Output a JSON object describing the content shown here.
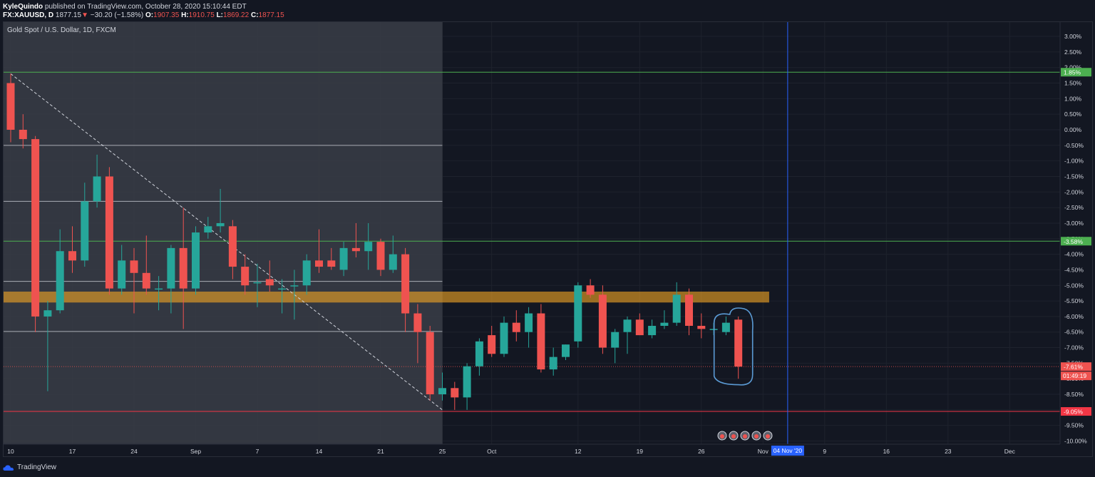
{
  "header": {
    "author": "KyleQuindo",
    "published_text": "published on TradingView.com, October 28, 2020 15:10:44 EDT",
    "symbol": "FX:XAUUSD, D",
    "last_price": "1877.15",
    "change_arrow": "▼",
    "change": "−30.20 (−1.58%)",
    "o_label": "O:",
    "o_value": "1907.35",
    "h_label": "H:",
    "h_value": "1910.75",
    "l_label": "L:",
    "l_value": "1869.22",
    "c_label": "C:",
    "c_value": "1877.15"
  },
  "instrument_title": "Gold Spot / U.S. Dollar, 1D, FXCM",
  "branding": "TradingView",
  "colors": {
    "background": "#131722",
    "up": "#26a69a",
    "down": "#ef5350",
    "green_line": "#4caf50",
    "red_line": "#f23645",
    "zone": "#f5a623",
    "vline": "#2962ff",
    "highlight_ellipse": "#5b9bd5"
  },
  "chart_data": {
    "type": "candlestick",
    "y_axis": {
      "unit": "%",
      "range": [
        -10.0,
        3.0
      ],
      "ticks": [
        "3.00%",
        "2.50%",
        "2.00%",
        "1.50%",
        "1.00%",
        "0.50%",
        "0.00%",
        "-0.50%",
        "-1.00%",
        "-1.50%",
        "-2.00%",
        "-2.50%",
        "-3.00%",
        "-3.50%",
        "-4.00%",
        "-4.50%",
        "-5.00%",
        "-5.50%",
        "-6.00%",
        "-6.50%",
        "-7.00%",
        "-7.50%",
        "-8.00%",
        "-8.50%",
        "-9.00%",
        "-9.50%",
        "-10.00%"
      ],
      "tick_values": [
        3.0,
        2.5,
        2.0,
        1.5,
        1.0,
        0.5,
        0.0,
        -0.5,
        -1.0,
        -1.5,
        -2.0,
        -2.5,
        -3.0,
        -3.5,
        -4.0,
        -4.5,
        -5.0,
        -5.5,
        -6.0,
        -6.5,
        -7.0,
        -7.5,
        -8.0,
        -8.5,
        -9.0,
        -9.5,
        -10.0
      ]
    },
    "x_axis": {
      "range": [
        0,
        86
      ],
      "ticks": [
        {
          "label": "10",
          "x": 0
        },
        {
          "label": "17",
          "x": 5
        },
        {
          "label": "24",
          "x": 10
        },
        {
          "label": "Sep",
          "x": 15
        },
        {
          "label": "7",
          "x": 20
        },
        {
          "label": "14",
          "x": 25
        },
        {
          "label": "21",
          "x": 30
        },
        {
          "label": "25",
          "x": 35
        },
        {
          "label": "Oct",
          "x": 39
        },
        {
          "label": "12",
          "x": 46
        },
        {
          "label": "19",
          "x": 51
        },
        {
          "label": "26",
          "x": 56
        },
        {
          "label": "Nov",
          "x": 61
        },
        {
          "label": "9",
          "x": 66
        },
        {
          "label": "16",
          "x": 71
        },
        {
          "label": "23",
          "x": 76
        },
        {
          "label": "Dec",
          "x": 81
        }
      ],
      "current_date_label": "04 Nov '20",
      "current_date_x": 63
    },
    "candles": [
      {
        "x": 0,
        "o": 1.5,
        "h": 1.8,
        "l": -0.4,
        "c": 0.0
      },
      {
        "x": 1,
        "o": 0.0,
        "h": 0.5,
        "l": -0.6,
        "c": -0.3
      },
      {
        "x": 2,
        "o": -0.3,
        "h": -0.2,
        "l": -6.5,
        "c": -6.0
      },
      {
        "x": 3,
        "o": -6.0,
        "h": -5.5,
        "l": -8.4,
        "c": -5.8
      },
      {
        "x": 4,
        "o": -5.8,
        "h": -3.2,
        "l": -5.9,
        "c": -3.9
      },
      {
        "x": 5,
        "o": -3.9,
        "h": -3.1,
        "l": -4.6,
        "c": -4.2
      },
      {
        "x": 6,
        "o": -4.2,
        "h": -1.7,
        "l": -4.4,
        "c": -2.3
      },
      {
        "x": 7,
        "o": -2.3,
        "h": -0.8,
        "l": -2.5,
        "c": -1.5
      },
      {
        "x": 8,
        "o": -1.5,
        "h": -1.2,
        "l": -5.3,
        "c": -5.1
      },
      {
        "x": 9,
        "o": -5.1,
        "h": -3.7,
        "l": -5.3,
        "c": -4.2
      },
      {
        "x": 10,
        "o": -4.2,
        "h": -3.8,
        "l": -5.9,
        "c": -4.6
      },
      {
        "x": 11,
        "o": -4.6,
        "h": -3.4,
        "l": -5.3,
        "c": -5.1
      },
      {
        "x": 12,
        "o": -5.1,
        "h": -4.7,
        "l": -5.8,
        "c": -5.1
      },
      {
        "x": 13,
        "o": -5.1,
        "h": -3.7,
        "l": -5.9,
        "c": -3.8
      },
      {
        "x": 14,
        "o": -3.8,
        "h": -2.5,
        "l": -6.4,
        "c": -5.1
      },
      {
        "x": 15,
        "o": -5.1,
        "h": -3.1,
        "l": -5.3,
        "c": -3.3
      },
      {
        "x": 16,
        "o": -3.3,
        "h": -2.8,
        "l": -3.5,
        "c": -3.1
      },
      {
        "x": 17,
        "o": -3.1,
        "h": -1.9,
        "l": -3.3,
        "c": -3.0
      },
      {
        "x": 18,
        "o": -3.1,
        "h": -2.9,
        "l": -4.8,
        "c": -4.4
      },
      {
        "x": 19,
        "o": -4.4,
        "h": -4.0,
        "l": -5.3,
        "c": -5.0
      },
      {
        "x": 20,
        "o": -4.9,
        "h": -4.3,
        "l": -5.7,
        "c": -4.9
      },
      {
        "x": 21,
        "o": -4.8,
        "h": -4.2,
        "l": -5.2,
        "c": -5.0
      },
      {
        "x": 22,
        "o": -5.1,
        "h": -4.8,
        "l": -5.9,
        "c": -5.1
      },
      {
        "x": 23,
        "o": -5.0,
        "h": -4.5,
        "l": -6.1,
        "c": -5.0
      },
      {
        "x": 24,
        "o": -5.0,
        "h": -4.0,
        "l": -5.3,
        "c": -4.2
      },
      {
        "x": 25,
        "o": -4.2,
        "h": -3.2,
        "l": -4.6,
        "c": -4.4
      },
      {
        "x": 26,
        "o": -4.2,
        "h": -3.8,
        "l": -4.5,
        "c": -4.4
      },
      {
        "x": 27,
        "o": -4.5,
        "h": -3.6,
        "l": -4.7,
        "c": -3.8
      },
      {
        "x": 28,
        "o": -3.8,
        "h": -3.0,
        "l": -4.1,
        "c": -3.9
      },
      {
        "x": 29,
        "o": -3.9,
        "h": -3.0,
        "l": -4.5,
        "c": -3.6
      },
      {
        "x": 30,
        "o": -3.6,
        "h": -3.5,
        "l": -4.7,
        "c": -4.5
      },
      {
        "x": 31,
        "o": -4.5,
        "h": -3.4,
        "l": -4.6,
        "c": -4.0
      },
      {
        "x": 32,
        "o": -4.0,
        "h": -3.8,
        "l": -6.5,
        "c": -5.9
      },
      {
        "x": 33,
        "o": -5.9,
        "h": -5.6,
        "l": -7.5,
        "c": -6.5
      },
      {
        "x": 34,
        "o": -6.5,
        "h": -6.3,
        "l": -8.7,
        "c": -8.5
      },
      {
        "x": 35,
        "o": -8.5,
        "h": -7.8,
        "l": -8.7,
        "c": -8.3
      },
      {
        "x": 36,
        "o": -8.3,
        "h": -8.1,
        "l": -9.0,
        "c": -8.6
      },
      {
        "x": 37,
        "o": -8.6,
        "h": -7.5,
        "l": -9.0,
        "c": -7.6
      },
      {
        "x": 38,
        "o": -7.6,
        "h": -6.7,
        "l": -7.9,
        "c": -6.8
      },
      {
        "x": 39,
        "o": -6.6,
        "h": -6.3,
        "l": -7.3,
        "c": -7.2
      },
      {
        "x": 40,
        "o": -7.2,
        "h": -6.0,
        "l": -7.3,
        "c": -6.2
      },
      {
        "x": 41,
        "o": -6.2,
        "h": -5.8,
        "l": -6.8,
        "c": -6.5
      },
      {
        "x": 42,
        "o": -6.5,
        "h": -5.7,
        "l": -7.0,
        "c": -5.9
      },
      {
        "x": 43,
        "o": -5.9,
        "h": -5.6,
        "l": -7.8,
        "c": -7.7
      },
      {
        "x": 44,
        "o": -7.7,
        "h": -7.0,
        "l": -7.9,
        "c": -7.3
      },
      {
        "x": 45,
        "o": -7.3,
        "h": -6.9,
        "l": -7.4,
        "c": -6.9
      },
      {
        "x": 46,
        "o": -6.8,
        "h": -4.9,
        "l": -7.0,
        "c": -5.0
      },
      {
        "x": 47,
        "o": -5.0,
        "h": -4.8,
        "l": -5.4,
        "c": -5.3
      },
      {
        "x": 48,
        "o": -5.3,
        "h": -5.0,
        "l": -7.2,
        "c": -7.0
      },
      {
        "x": 49,
        "o": -7.0,
        "h": -6.4,
        "l": -7.5,
        "c": -6.5
      },
      {
        "x": 50,
        "o": -6.5,
        "h": -6.0,
        "l": -7.2,
        "c": -6.1
      },
      {
        "x": 51,
        "o": -6.1,
        "h": -5.9,
        "l": -6.6,
        "c": -6.6
      },
      {
        "x": 52,
        "o": -6.6,
        "h": -6.1,
        "l": -6.7,
        "c": -6.3
      },
      {
        "x": 53,
        "o": -6.3,
        "h": -5.8,
        "l": -6.4,
        "c": -6.2
      },
      {
        "x": 54,
        "o": -6.2,
        "h": -4.9,
        "l": -6.3,
        "c": -5.3
      },
      {
        "x": 55,
        "o": -5.3,
        "h": -5.1,
        "l": -6.6,
        "c": -6.3
      },
      {
        "x": 56,
        "o": -6.3,
        "h": -5.9,
        "l": -6.7,
        "c": -6.4
      },
      {
        "x": 57,
        "o": -6.4,
        "h": -6.2,
        "l": -6.6,
        "c": -6.4
      },
      {
        "x": 58,
        "o": -6.5,
        "h": -6.0,
        "l": -6.6,
        "c": -6.2
      },
      {
        "x": 59,
        "o": -6.1,
        "h": -6.0,
        "l": -8.0,
        "c": -7.61
      }
    ],
    "horizontal_lines": [
      {
        "value": 1.85,
        "color": "#4caf50",
        "label": "1.85%",
        "extend": "full"
      },
      {
        "value": -3.58,
        "color": "#4caf50",
        "label": "-3.58%",
        "extend": "full"
      },
      {
        "value": -9.05,
        "color": "#f23645",
        "label": "-9.05%",
        "extend": "full"
      },
      {
        "value": -0.5,
        "color": "#d1d4dc",
        "extend": "left"
      },
      {
        "value": -2.3,
        "color": "#d1d4dc",
        "extend": "left"
      },
      {
        "value": -4.87,
        "color": "#d1d4dc",
        "extend": "left"
      },
      {
        "value": -6.48,
        "color": "#d1d4dc",
        "extend": "left"
      }
    ],
    "current_price": {
      "value": -7.61,
      "label": "-7.61%",
      "countdown": "01:49:19"
    },
    "zone": {
      "from": -5.2,
      "to": -5.55,
      "x_end": 61.5
    },
    "shaded_region": {
      "x_start": 0,
      "x_end": 35.0
    },
    "trendline": {
      "x1": 0,
      "y1": 1.8,
      "x2": 35.0,
      "y2": -9.0
    },
    "highlight": {
      "x": 59,
      "y_top": -5.75,
      "y_bottom": -8.1
    }
  }
}
